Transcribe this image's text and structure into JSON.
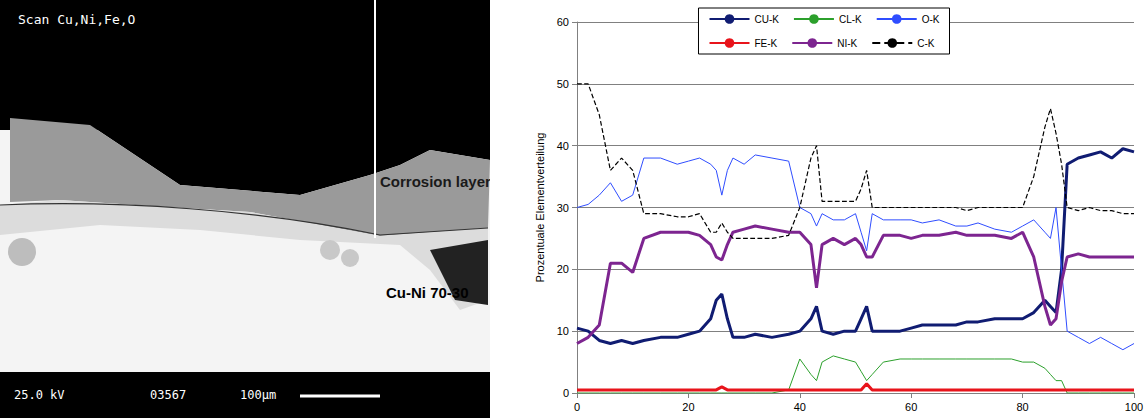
{
  "micrograph": {
    "header": "Scan Cu,Ni,Fe,O",
    "labels": [
      "Corrosion layer",
      "Cu-Ni 70-30"
    ],
    "footer": [
      "25.0 kV",
      "03567",
      "100µm"
    ]
  },
  "chart_data": {
    "type": "line",
    "y_label": "Prozentuale Elementverteilung",
    "x": [
      0,
      2,
      4,
      6,
      8,
      10,
      12,
      15,
      18,
      20,
      22,
      24,
      25,
      26,
      27,
      28,
      30,
      32,
      35,
      38,
      40,
      42,
      43,
      44,
      46,
      48,
      50,
      51,
      52,
      53,
      55,
      58,
      60,
      62,
      65,
      68,
      70,
      72,
      75,
      78,
      80,
      82,
      84,
      85,
      86,
      87,
      88,
      90,
      92,
      94,
      96,
      98,
      100
    ],
    "series": [
      {
        "name": "CU-K",
        "color": "#101c72",
        "line_style": "solid",
        "values": [
          10.5,
          10,
          8.5,
          8,
          8.5,
          8,
          8.5,
          9,
          9,
          9.5,
          10,
          12,
          15,
          16,
          12,
          9,
          9,
          9.5,
          9,
          9.5,
          10,
          12,
          14,
          10,
          9.5,
          10,
          10,
          12,
          14,
          10,
          10,
          10,
          10.5,
          11,
          11,
          11,
          11.5,
          11.5,
          12,
          12,
          12,
          13,
          15,
          14,
          13,
          20,
          37,
          38,
          38.5,
          39,
          38,
          39.5,
          39
        ]
      },
      {
        "name": "CL-K",
        "color": "#2ca02c",
        "line_style": "solid",
        "values": [
          0,
          0,
          0,
          0,
          0,
          0,
          0,
          0,
          0,
          0,
          0,
          0,
          0,
          0,
          0,
          0,
          0,
          0,
          0,
          0.5,
          5.5,
          3,
          2,
          5,
          6,
          5.5,
          5,
          3.5,
          2,
          3,
          5,
          5.5,
          5.5,
          5.5,
          5.5,
          5.5,
          5.5,
          5.5,
          5.5,
          5.5,
          5,
          5,
          4,
          3,
          2,
          2,
          0,
          0,
          0,
          0,
          0,
          0,
          0
        ]
      },
      {
        "name": "O-K",
        "color": "#2f4dff",
        "line_style": "solid",
        "values": [
          30,
          30.5,
          32,
          34,
          31,
          32,
          38,
          38,
          37,
          37.5,
          38,
          37,
          36,
          32,
          36,
          38,
          37,
          38.5,
          38,
          37.5,
          30,
          29,
          27,
          29,
          28,
          28,
          29,
          26,
          23,
          29,
          28,
          28,
          28,
          27.5,
          28,
          27,
          27,
          27.5,
          26.5,
          26,
          27,
          28,
          26,
          25,
          30,
          20,
          10,
          9,
          8,
          9,
          8,
          7,
          8
        ]
      },
      {
        "name": "FE-K",
        "color": "#e8141b",
        "line_style": "solid",
        "values": [
          0.5,
          0.5,
          0.5,
          0.5,
          0.5,
          0.5,
          0.5,
          0.5,
          0.5,
          0.5,
          0.5,
          0.5,
          0.5,
          1,
          0.5,
          0.5,
          0.5,
          0.5,
          0.5,
          0.5,
          0.5,
          0.5,
          0.5,
          0.5,
          0.5,
          0.5,
          0.5,
          0.5,
          1.5,
          0.5,
          0.5,
          0.5,
          0.5,
          0.5,
          0.5,
          0.5,
          0.5,
          0.5,
          0.5,
          0.5,
          0.5,
          0.5,
          0.5,
          0.5,
          0.5,
          0.5,
          0.5,
          0.5,
          0.5,
          0.5,
          0.5,
          0.5,
          0.5
        ]
      },
      {
        "name": "NI-K",
        "color": "#7d2590",
        "line_style": "solid",
        "values": [
          8,
          9,
          11,
          21,
          21,
          19.5,
          25,
          26,
          26,
          26,
          25.5,
          24,
          22,
          21.5,
          24,
          26,
          26.5,
          27,
          26.5,
          26,
          26,
          24,
          17,
          24,
          25,
          24,
          25,
          24,
          22,
          22,
          25.5,
          25.5,
          25,
          25.5,
          25.5,
          26,
          25.5,
          25.5,
          25.5,
          25,
          26,
          22,
          14,
          11,
          12,
          18,
          22,
          22.5,
          22,
          22,
          22,
          22,
          22
        ]
      },
      {
        "name": "C-K",
        "color": "#000000",
        "line_style": "dashed",
        "values": [
          50,
          50,
          45,
          36,
          38,
          36,
          29,
          29,
          28.5,
          28.5,
          29,
          26,
          26,
          27.5,
          26,
          25,
          25,
          25,
          25,
          25.5,
          30,
          38,
          40,
          31,
          31,
          31,
          31,
          33,
          36,
          30,
          30,
          30,
          30,
          30,
          30,
          30,
          29.5,
          30,
          30,
          30,
          30,
          35,
          43,
          46,
          42,
          37,
          30,
          29.5,
          30,
          29.5,
          29.5,
          29,
          29
        ]
      }
    ],
    "xlim": [
      0,
      100
    ],
    "xticks": [
      0,
      20,
      40,
      60,
      80,
      100
    ],
    "ylim": [
      0,
      60
    ],
    "yticks": [
      0,
      10,
      20,
      30,
      40,
      50,
      60
    ],
    "grid": true,
    "legend": "top"
  }
}
